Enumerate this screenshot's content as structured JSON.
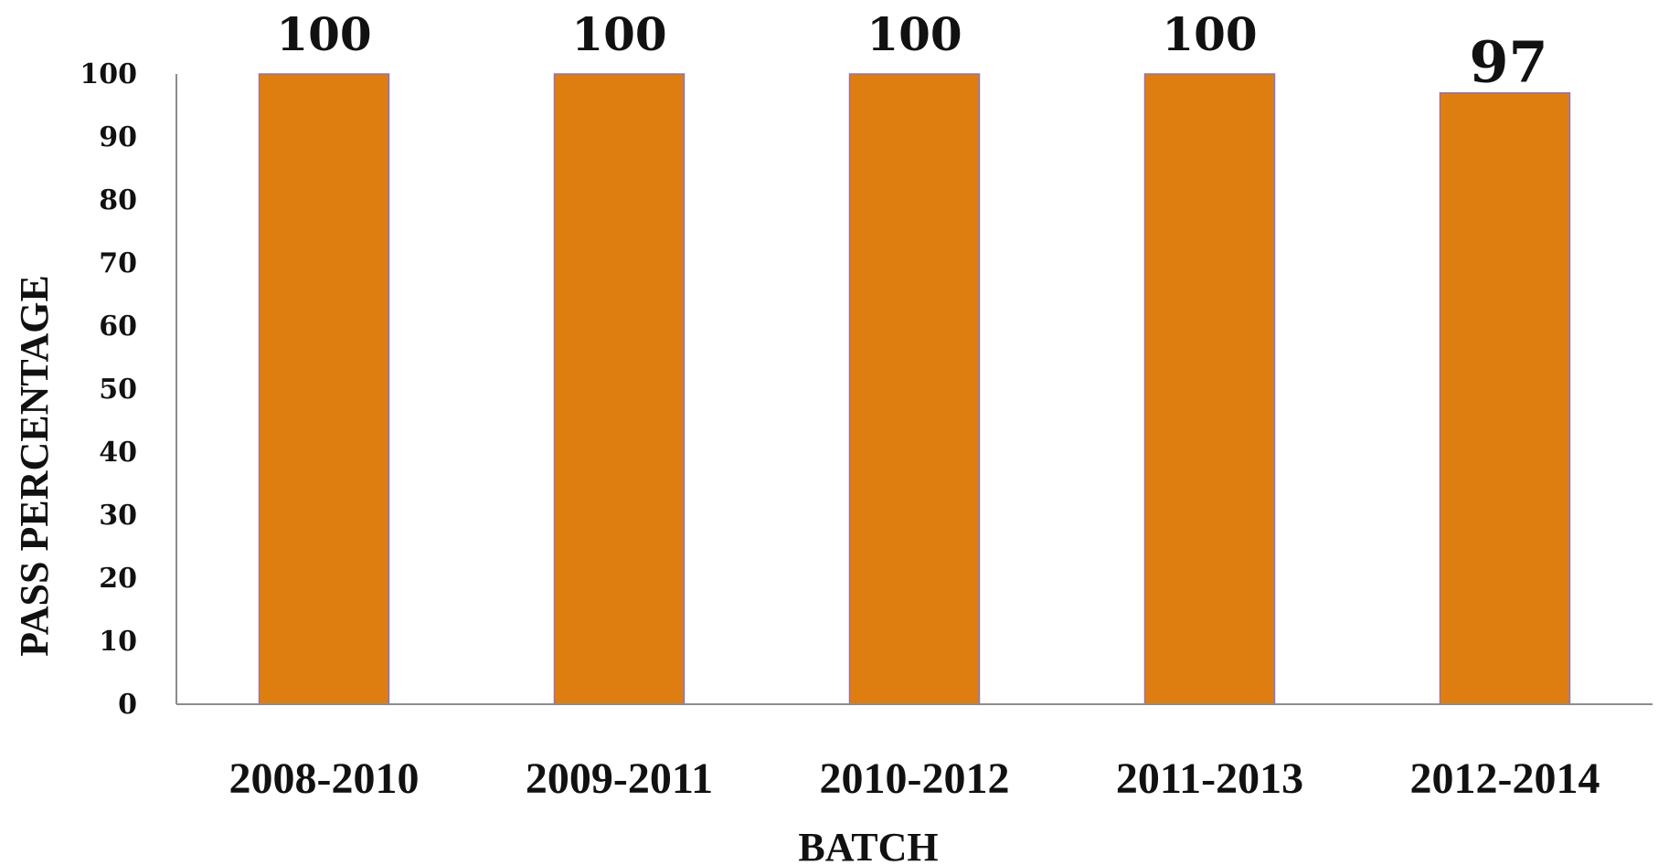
{
  "chart_data": {
    "type": "bar",
    "categories": [
      "2008-2010",
      "2009-2011",
      "2010-2012",
      "2011-2013",
      "2012-2014"
    ],
    "values": [
      100,
      100,
      100,
      100,
      97
    ],
    "data_labels": [
      "100",
      "100",
      "100",
      "100",
      "97"
    ],
    "xlabel": "BATCH",
    "ylabel": "PASS PERCENTAGE",
    "ylim": [
      0,
      100
    ],
    "yticks": [
      0,
      10,
      20,
      30,
      40,
      50,
      60,
      70,
      80,
      90,
      100
    ],
    "grid": false,
    "legend": "none",
    "bar_color": "#DF7E10",
    "bar_edge_color": "#8E74B8",
    "axis_color": "#8C8C8C"
  }
}
